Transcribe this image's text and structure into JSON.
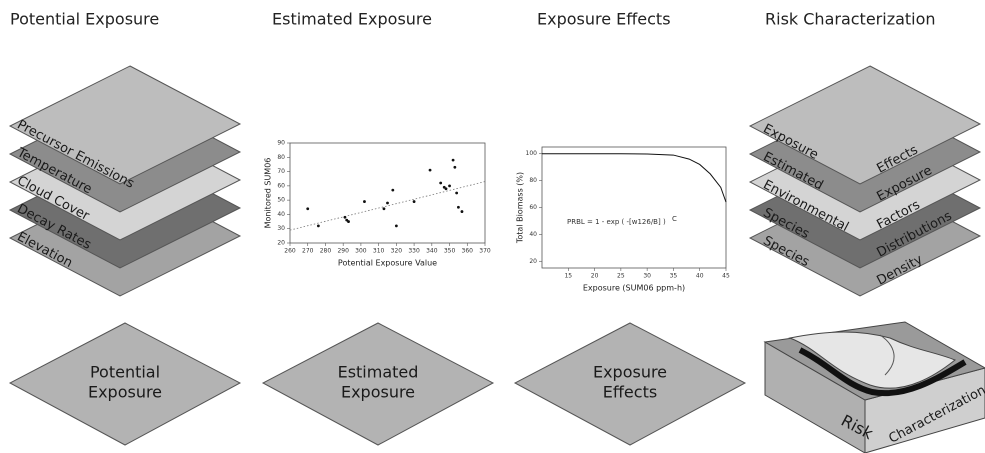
{
  "columns": [
    {
      "title": "Potential Exposure",
      "layers": [
        "Precursor Emissions",
        "Temperature",
        "Cloud Cover",
        "Decay Rates",
        "Elevation"
      ],
      "base": [
        "Potential",
        "Exposure"
      ]
    },
    {
      "title": "Estimated Exposure",
      "chart": {
        "type": "scatter",
        "x_label": "Potential Exposure Value",
        "y_label": "Monitored SUM06",
        "xlim": [
          260,
          370
        ],
        "ylim": [
          20,
          90
        ],
        "xticks": [
          260,
          270,
          280,
          290,
          300,
          310,
          320,
          330,
          340,
          350,
          360,
          370
        ],
        "yticks": [
          20,
          30,
          40,
          50,
          60,
          70,
          80,
          90
        ],
        "x": [
          270,
          276,
          291,
          292,
          293,
          302,
          313,
          315,
          318,
          320,
          330,
          339,
          345,
          347,
          348,
          350,
          352,
          353,
          354,
          355,
          357
        ],
        "y": [
          44,
          32,
          38,
          36,
          35,
          49,
          44,
          48,
          57,
          32,
          49,
          71,
          62,
          59,
          58,
          60,
          78,
          73,
          55,
          45,
          42
        ],
        "trend": {
          "x": [
            260,
            370
          ],
          "y": [
            29,
            63
          ]
        }
      },
      "base": [
        "Estimated",
        "Exposure"
      ]
    },
    {
      "title": "Exposure Effects",
      "chart": {
        "type": "line",
        "x_label": "Exposure (SUM06 ppm-h)",
        "y_label": "Total Biomass (%)",
        "xlim": [
          10,
          45
        ],
        "ylim": [
          15,
          105
        ],
        "xticks": [
          15,
          20,
          25,
          30,
          35,
          40,
          45
        ],
        "yticks": [
          20,
          40,
          60,
          80,
          100
        ],
        "x": [
          10,
          20,
          25,
          30,
          35,
          38,
          40,
          42,
          44,
          45
        ],
        "y": [
          100,
          100,
          100,
          99.8,
          99,
          96,
          92,
          85,
          75,
          64
        ],
        "annotations": [
          "PRBL = 1 - exp ( -[w126/B] )",
          "C"
        ]
      },
      "base": [
        "Exposure",
        "Effects"
      ]
    },
    {
      "title": "Risk Characterization",
      "layers": [
        {
          "left": "Exposure",
          "right": "Effects"
        },
        {
          "left": "Estimated",
          "right": "Exposure"
        },
        {
          "left": "Environmental",
          "right": "Factors"
        },
        {
          "left": "Species",
          "right": "Distributions"
        },
        {
          "left": "Species",
          "right": "Density"
        }
      ],
      "base": [
        "Risk",
        "Characterization"
      ]
    }
  ]
}
